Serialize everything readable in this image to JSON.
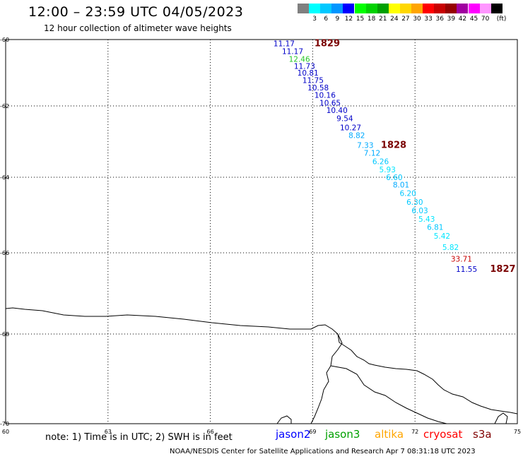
{
  "header": {
    "title": "12:00 – 23:59 UTC 04/05/2023",
    "subtitle": "12 hour collection of altimeter wave heights"
  },
  "legend": {
    "unit": "(ft)",
    "swatches": [
      {
        "color": "#808080",
        "label": ""
      },
      {
        "color": "#00ffff",
        "label": "3"
      },
      {
        "color": "#00c8ff",
        "label": "6"
      },
      {
        "color": "#0096ff",
        "label": "9"
      },
      {
        "color": "#0000ff",
        "label": "12"
      },
      {
        "color": "#00ff00",
        "label": "15"
      },
      {
        "color": "#00d200",
        "label": "18"
      },
      {
        "color": "#00a000",
        "label": "21"
      },
      {
        "color": "#ffff00",
        "label": "24"
      },
      {
        "color": "#ffd700",
        "label": "27"
      },
      {
        "color": "#ffa500",
        "label": "30"
      },
      {
        "color": "#ff0000",
        "label": "33"
      },
      {
        "color": "#c80000",
        "label": "36"
      },
      {
        "color": "#960000",
        "label": "39"
      },
      {
        "color": "#a000a0",
        "label": "42"
      },
      {
        "color": "#ff00ff",
        "label": "45"
      },
      {
        "color": "#ff96ff",
        "label": "70"
      },
      {
        "color": "#000000",
        "label": ""
      }
    ]
  },
  "axes": {
    "y_ticks": [
      {
        "label": "-60",
        "lat": -60
      },
      {
        "label": "-62",
        "lat": -62
      },
      {
        "label": "-64",
        "lat": -64
      },
      {
        "label": "-66",
        "lat": -66
      },
      {
        "label": "-68",
        "lat": -68
      },
      {
        "label": "-70",
        "lat": -70
      }
    ],
    "x_ticks": [
      {
        "label": "60",
        "lon": 60
      },
      {
        "label": "63",
        "lon": 63
      },
      {
        "label": "66",
        "lon": 66
      },
      {
        "label": "69",
        "lon": 69
      },
      {
        "label": "72",
        "lon": 72
      },
      {
        "label": "75",
        "lon": 75
      }
    ]
  },
  "passes": [
    {
      "label": "1829",
      "lat": -60.12,
      "lon": 69.05
    },
    {
      "label": "1828",
      "lat": -63.1,
      "lon": 71.0
    },
    {
      "label": "1827",
      "lat": -66.4,
      "lon": 74.2
    }
  ],
  "observations": [
    {
      "v": "11.17",
      "lat": -60.12,
      "lon": 67.85,
      "color": "#0000c8"
    },
    {
      "v": "11.17",
      "lat": -60.35,
      "lon": 68.1,
      "color": "#0000c8"
    },
    {
      "v": "12.46",
      "lat": -60.58,
      "lon": 68.3,
      "color": "#28c828"
    },
    {
      "v": "11.73",
      "lat": -60.8,
      "lon": 68.45,
      "color": "#0000c8"
    },
    {
      "v": "10.81",
      "lat": -61.0,
      "lon": 68.55,
      "color": "#0000c8"
    },
    {
      "v": "11.75",
      "lat": -61.22,
      "lon": 68.7,
      "color": "#0000c8"
    },
    {
      "v": "10.58",
      "lat": -61.45,
      "lon": 68.85,
      "color": "#0000c8"
    },
    {
      "v": "10.16",
      "lat": -61.67,
      "lon": 69.05,
      "color": "#0000c8"
    },
    {
      "v": "10.65",
      "lat": -61.9,
      "lon": 69.2,
      "color": "#0000c8"
    },
    {
      "v": "10.40",
      "lat": -62.12,
      "lon": 69.4,
      "color": "#0000c8"
    },
    {
      "v": "9.54",
      "lat": -62.35,
      "lon": 69.7,
      "color": "#0000c8"
    },
    {
      "v": "10.27",
      "lat": -62.6,
      "lon": 69.8,
      "color": "#0000c8"
    },
    {
      "v": "8.82",
      "lat": -62.82,
      "lon": 70.05,
      "color": "#00aaff"
    },
    {
      "v": "7.33",
      "lat": -63.1,
      "lon": 70.3,
      "color": "#00aaff"
    },
    {
      "v": "7.12",
      "lat": -63.32,
      "lon": 70.5,
      "color": "#00aaff"
    },
    {
      "v": "6.26",
      "lat": -63.55,
      "lon": 70.75,
      "color": "#00c8ff"
    },
    {
      "v": "5.93",
      "lat": -63.78,
      "lon": 70.95,
      "color": "#00e6ff"
    },
    {
      "v": "6.60",
      "lat": -64.0,
      "lon": 71.15,
      "color": "#00c8ff"
    },
    {
      "v": "8.01",
      "lat": -64.2,
      "lon": 71.35,
      "color": "#00aaff"
    },
    {
      "v": "6.20",
      "lat": -64.42,
      "lon": 71.55,
      "color": "#00c8ff"
    },
    {
      "v": "6.30",
      "lat": -64.65,
      "lon": 71.75,
      "color": "#00c8ff"
    },
    {
      "v": "6.03",
      "lat": -64.88,
      "lon": 71.9,
      "color": "#00c8ff"
    },
    {
      "v": "5.43",
      "lat": -65.1,
      "lon": 72.1,
      "color": "#00e6ff"
    },
    {
      "v": "6.81",
      "lat": -65.32,
      "lon": 72.35,
      "color": "#00c8ff"
    },
    {
      "v": "5.42",
      "lat": -65.55,
      "lon": 72.55,
      "color": "#00e6ff"
    },
    {
      "v": "5.82",
      "lat": -65.85,
      "lon": 72.8,
      "color": "#00e6ff"
    },
    {
      "v": "33.71",
      "lat": -66.15,
      "lon": 73.05,
      "color": "#c80000"
    },
    {
      "v": "11.55",
      "lat": -66.4,
      "lon": 73.2,
      "color": "#0000c8"
    }
  ],
  "footer": {
    "note": "note:  1) Time is in UTC;  2) SWH is in feet",
    "satellites": [
      {
        "name": "jason2",
        "color": "#0000ff"
      },
      {
        "name": "jason3",
        "color": "#00a000"
      },
      {
        "name": "altika",
        "color": "#ffa500"
      },
      {
        "name": "cryosat",
        "color": "#ff0000"
      },
      {
        "name": "s3a",
        "color": "#800000"
      }
    ],
    "credit": "NOAA/NESDIS Center for Satellite Applications and Research    Apr  7 08:31:18 UTC 2023"
  }
}
